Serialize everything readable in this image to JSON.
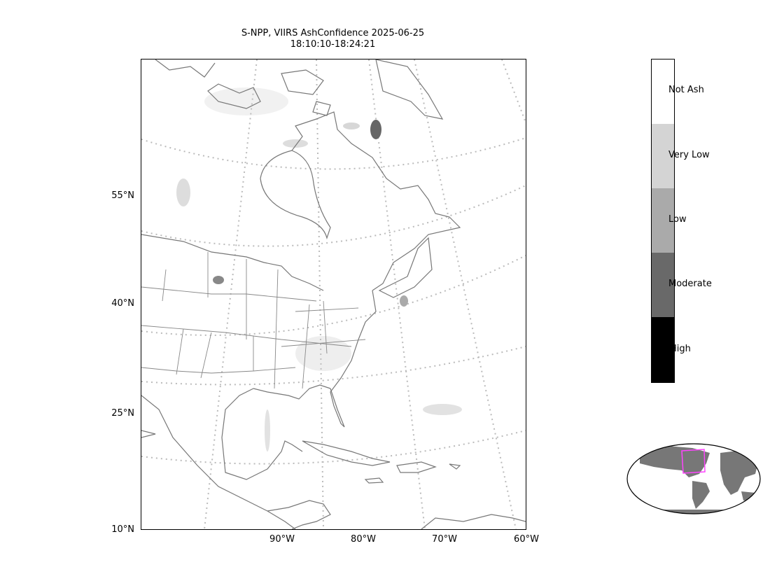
{
  "title": {
    "line1": "S-NPP, VIIRS AshConfidence 2025-06-25",
    "line2": "18:10:10-18:24:21"
  },
  "map": {
    "lat_labels": [
      "55°N",
      "40°N",
      "25°N",
      "10°N"
    ],
    "lon_labels": [
      "90°W",
      "80°W",
      "70°W",
      "60°W"
    ],
    "gridline_color": "#bbbbbb",
    "coastline_color": "#777777"
  },
  "colorbar": {
    "categories": [
      {
        "label": "Not Ash",
        "color": "#ffffff"
      },
      {
        "label": "Very Low",
        "color": "#d4d4d4"
      },
      {
        "label": "Low",
        "color": "#aaaaaa"
      },
      {
        "label": "Moderate",
        "color": "#696969"
      },
      {
        "label": "High",
        "color": "#000000"
      }
    ]
  },
  "inset": {
    "land_color": "#777777",
    "highlight_color": "#ff44ff"
  }
}
